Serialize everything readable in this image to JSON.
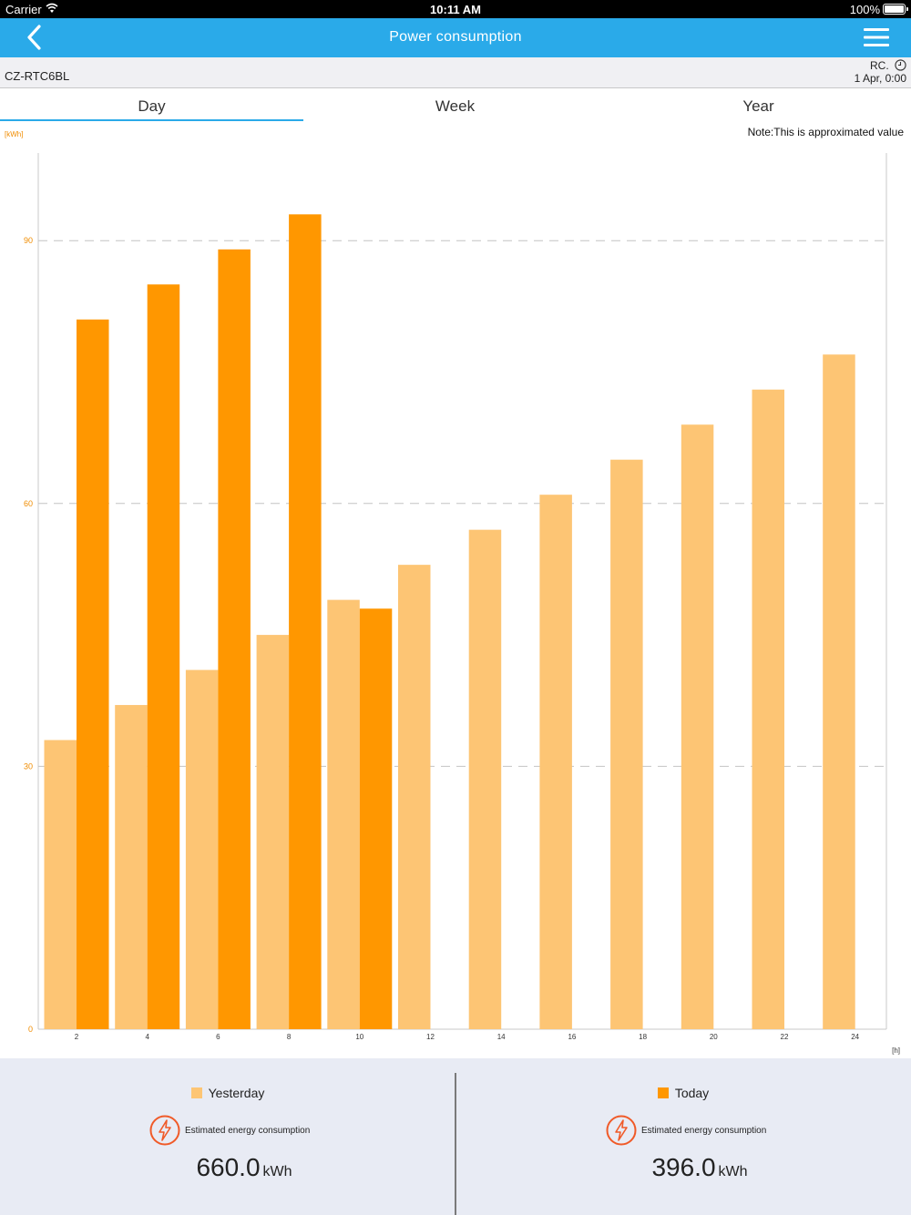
{
  "status_bar": {
    "carrier": "Carrier",
    "time": "10:11 AM",
    "battery": "100%"
  },
  "nav": {
    "title": "Power consumption"
  },
  "device": {
    "name": "CZ-RTC6BL",
    "source": "RC.",
    "datetime": "1 Apr, 0:00"
  },
  "tabs": [
    {
      "label": "Day",
      "active": true
    },
    {
      "label": "Week",
      "active": false
    },
    {
      "label": "Year",
      "active": false
    }
  ],
  "note": "Note:This is approximated value",
  "chart_data": {
    "type": "bar",
    "y_unit": "[kWh]",
    "x_unit": "[h]",
    "ylim": [
      0,
      100
    ],
    "yticks": [
      "0",
      "30",
      "60",
      "90"
    ],
    "grid": "horizontal dashed",
    "categories": [
      "2",
      "4",
      "6",
      "8",
      "10",
      "12",
      "14",
      "16",
      "18",
      "20",
      "22",
      "24"
    ],
    "series": [
      {
        "name": "Yesterday",
        "color": "#fdc574",
        "values": [
          33,
          37,
          41,
          45,
          49,
          53,
          57,
          61,
          65,
          69,
          73,
          77
        ]
      },
      {
        "name": "Today",
        "color": "#ff9700",
        "values": [
          81,
          85,
          89,
          93,
          48,
          null,
          null,
          null,
          null,
          null,
          null,
          null
        ]
      }
    ]
  },
  "summary": {
    "yesterday": {
      "legend": "Yesterday",
      "label": "Estimated energy consumption",
      "value": "660.0",
      "unit": "kWh",
      "color": "#fdc574"
    },
    "today": {
      "legend": "Today",
      "label": "Estimated energy consumption",
      "value": "396.0",
      "unit": "kWh",
      "color": "#ff9700"
    }
  },
  "colors": {
    "accent": "#2aaae9",
    "bolt": "#f05a28",
    "axis_text": "#f08c00"
  }
}
